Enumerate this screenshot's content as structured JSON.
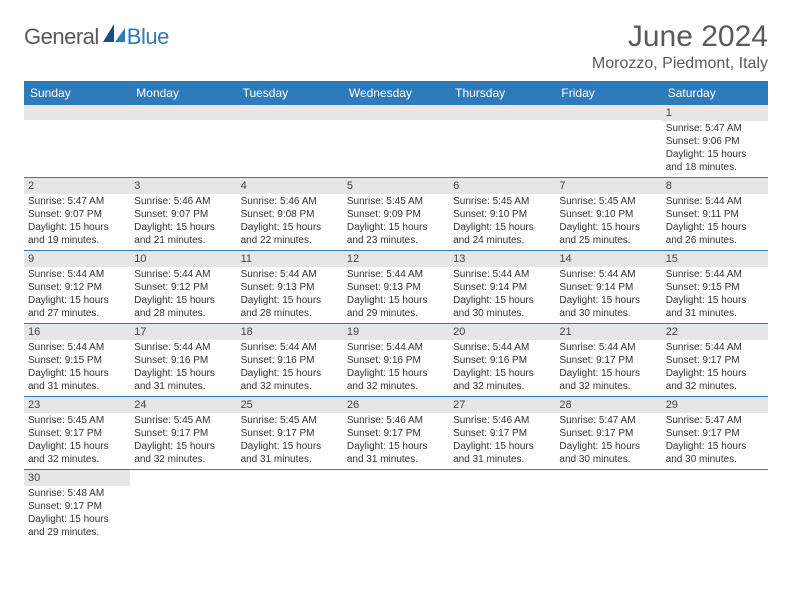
{
  "logo": {
    "part1": "General",
    "part2": "Blue"
  },
  "title": "June 2024",
  "location": "Morozzo, Piedmont, Italy",
  "colors": {
    "header_bg": "#2f7ab8",
    "header_text": "#ffffff",
    "daynum_bg": "#e6e6e6",
    "border": "#2f7ab8",
    "text": "#333333",
    "logo_gray": "#5a5a5a",
    "logo_blue": "#2f7ab8"
  },
  "weekdays": [
    "Sunday",
    "Monday",
    "Tuesday",
    "Wednesday",
    "Thursday",
    "Friday",
    "Saturday"
  ],
  "weeks": [
    [
      {
        "n": "",
        "sr": "",
        "ss": "",
        "dl": ""
      },
      {
        "n": "",
        "sr": "",
        "ss": "",
        "dl": ""
      },
      {
        "n": "",
        "sr": "",
        "ss": "",
        "dl": ""
      },
      {
        "n": "",
        "sr": "",
        "ss": "",
        "dl": ""
      },
      {
        "n": "",
        "sr": "",
        "ss": "",
        "dl": ""
      },
      {
        "n": "",
        "sr": "",
        "ss": "",
        "dl": ""
      },
      {
        "n": "1",
        "sr": "Sunrise: 5:47 AM",
        "ss": "Sunset: 9:06 PM",
        "dl": "Daylight: 15 hours and 18 minutes."
      }
    ],
    [
      {
        "n": "2",
        "sr": "Sunrise: 5:47 AM",
        "ss": "Sunset: 9:07 PM",
        "dl": "Daylight: 15 hours and 19 minutes."
      },
      {
        "n": "3",
        "sr": "Sunrise: 5:46 AM",
        "ss": "Sunset: 9:07 PM",
        "dl": "Daylight: 15 hours and 21 minutes."
      },
      {
        "n": "4",
        "sr": "Sunrise: 5:46 AM",
        "ss": "Sunset: 9:08 PM",
        "dl": "Daylight: 15 hours and 22 minutes."
      },
      {
        "n": "5",
        "sr": "Sunrise: 5:45 AM",
        "ss": "Sunset: 9:09 PM",
        "dl": "Daylight: 15 hours and 23 minutes."
      },
      {
        "n": "6",
        "sr": "Sunrise: 5:45 AM",
        "ss": "Sunset: 9:10 PM",
        "dl": "Daylight: 15 hours and 24 minutes."
      },
      {
        "n": "7",
        "sr": "Sunrise: 5:45 AM",
        "ss": "Sunset: 9:10 PM",
        "dl": "Daylight: 15 hours and 25 minutes."
      },
      {
        "n": "8",
        "sr": "Sunrise: 5:44 AM",
        "ss": "Sunset: 9:11 PM",
        "dl": "Daylight: 15 hours and 26 minutes."
      }
    ],
    [
      {
        "n": "9",
        "sr": "Sunrise: 5:44 AM",
        "ss": "Sunset: 9:12 PM",
        "dl": "Daylight: 15 hours and 27 minutes."
      },
      {
        "n": "10",
        "sr": "Sunrise: 5:44 AM",
        "ss": "Sunset: 9:12 PM",
        "dl": "Daylight: 15 hours and 28 minutes."
      },
      {
        "n": "11",
        "sr": "Sunrise: 5:44 AM",
        "ss": "Sunset: 9:13 PM",
        "dl": "Daylight: 15 hours and 28 minutes."
      },
      {
        "n": "12",
        "sr": "Sunrise: 5:44 AM",
        "ss": "Sunset: 9:13 PM",
        "dl": "Daylight: 15 hours and 29 minutes."
      },
      {
        "n": "13",
        "sr": "Sunrise: 5:44 AM",
        "ss": "Sunset: 9:14 PM",
        "dl": "Daylight: 15 hours and 30 minutes."
      },
      {
        "n": "14",
        "sr": "Sunrise: 5:44 AM",
        "ss": "Sunset: 9:14 PM",
        "dl": "Daylight: 15 hours and 30 minutes."
      },
      {
        "n": "15",
        "sr": "Sunrise: 5:44 AM",
        "ss": "Sunset: 9:15 PM",
        "dl": "Daylight: 15 hours and 31 minutes."
      }
    ],
    [
      {
        "n": "16",
        "sr": "Sunrise: 5:44 AM",
        "ss": "Sunset: 9:15 PM",
        "dl": "Daylight: 15 hours and 31 minutes."
      },
      {
        "n": "17",
        "sr": "Sunrise: 5:44 AM",
        "ss": "Sunset: 9:16 PM",
        "dl": "Daylight: 15 hours and 31 minutes."
      },
      {
        "n": "18",
        "sr": "Sunrise: 5:44 AM",
        "ss": "Sunset: 9:16 PM",
        "dl": "Daylight: 15 hours and 32 minutes."
      },
      {
        "n": "19",
        "sr": "Sunrise: 5:44 AM",
        "ss": "Sunset: 9:16 PM",
        "dl": "Daylight: 15 hours and 32 minutes."
      },
      {
        "n": "20",
        "sr": "Sunrise: 5:44 AM",
        "ss": "Sunset: 9:16 PM",
        "dl": "Daylight: 15 hours and 32 minutes."
      },
      {
        "n": "21",
        "sr": "Sunrise: 5:44 AM",
        "ss": "Sunset: 9:17 PM",
        "dl": "Daylight: 15 hours and 32 minutes."
      },
      {
        "n": "22",
        "sr": "Sunrise: 5:44 AM",
        "ss": "Sunset: 9:17 PM",
        "dl": "Daylight: 15 hours and 32 minutes."
      }
    ],
    [
      {
        "n": "23",
        "sr": "Sunrise: 5:45 AM",
        "ss": "Sunset: 9:17 PM",
        "dl": "Daylight: 15 hours and 32 minutes."
      },
      {
        "n": "24",
        "sr": "Sunrise: 5:45 AM",
        "ss": "Sunset: 9:17 PM",
        "dl": "Daylight: 15 hours and 32 minutes."
      },
      {
        "n": "25",
        "sr": "Sunrise: 5:45 AM",
        "ss": "Sunset: 9:17 PM",
        "dl": "Daylight: 15 hours and 31 minutes."
      },
      {
        "n": "26",
        "sr": "Sunrise: 5:46 AM",
        "ss": "Sunset: 9:17 PM",
        "dl": "Daylight: 15 hours and 31 minutes."
      },
      {
        "n": "27",
        "sr": "Sunrise: 5:46 AM",
        "ss": "Sunset: 9:17 PM",
        "dl": "Daylight: 15 hours and 31 minutes."
      },
      {
        "n": "28",
        "sr": "Sunrise: 5:47 AM",
        "ss": "Sunset: 9:17 PM",
        "dl": "Daylight: 15 hours and 30 minutes."
      },
      {
        "n": "29",
        "sr": "Sunrise: 5:47 AM",
        "ss": "Sunset: 9:17 PM",
        "dl": "Daylight: 15 hours and 30 minutes."
      }
    ],
    [
      {
        "n": "30",
        "sr": "Sunrise: 5:48 AM",
        "ss": "Sunset: 9:17 PM",
        "dl": "Daylight: 15 hours and 29 minutes."
      },
      {
        "n": "",
        "sr": "",
        "ss": "",
        "dl": ""
      },
      {
        "n": "",
        "sr": "",
        "ss": "",
        "dl": ""
      },
      {
        "n": "",
        "sr": "",
        "ss": "",
        "dl": ""
      },
      {
        "n": "",
        "sr": "",
        "ss": "",
        "dl": ""
      },
      {
        "n": "",
        "sr": "",
        "ss": "",
        "dl": ""
      },
      {
        "n": "",
        "sr": "",
        "ss": "",
        "dl": ""
      }
    ]
  ]
}
